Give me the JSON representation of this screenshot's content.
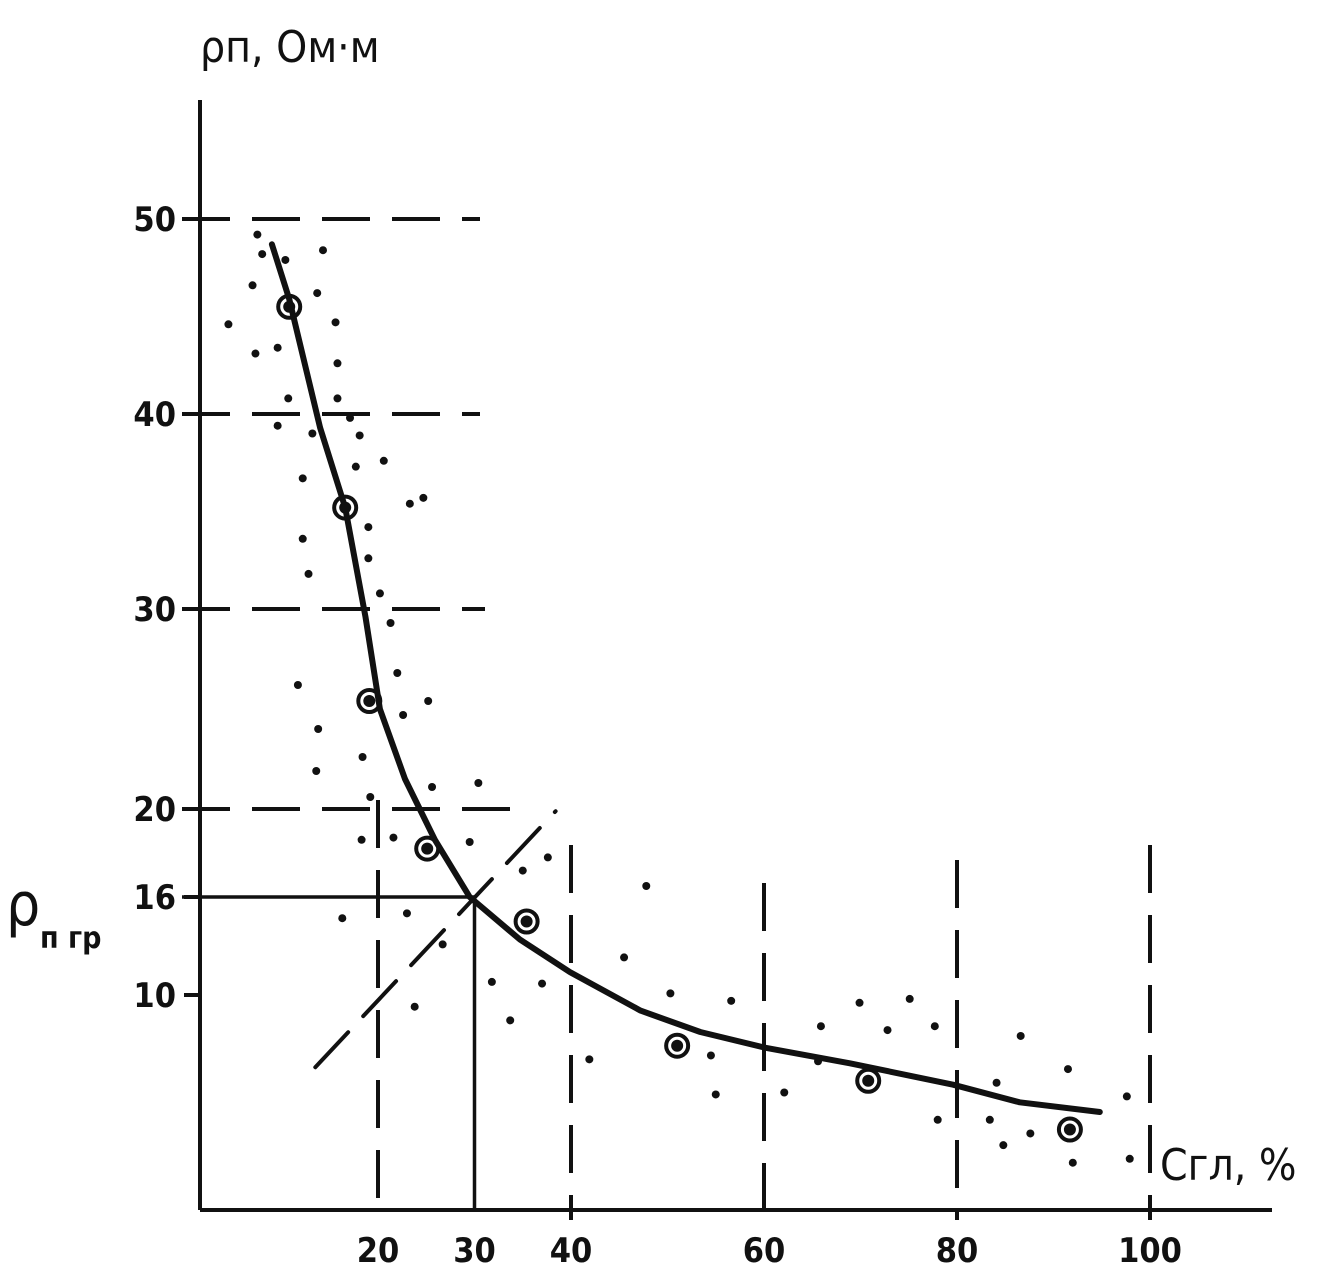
{
  "chart_data": {
    "type": "scatter",
    "title": "",
    "ylabel": "ρп, Ом·м",
    "xlabel": "Сгл, %",
    "annotation": {
      "label_main": "ρ",
      "label_sub": "п гр",
      "value": 16,
      "x_at_value": 30
    },
    "xlim": [
      0,
      110
    ],
    "ylim": [
      0,
      52
    ],
    "x_ticks": [
      "20",
      "30",
      "40",
      "60",
      "80",
      "100"
    ],
    "x_tick_values": [
      20,
      30,
      40,
      60,
      80,
      100
    ],
    "y_ticks": [
      "10",
      "16",
      "20",
      "30",
      "40",
      "50"
    ],
    "y_tick_values": [
      10,
      16,
      20,
      30,
      40,
      50
    ],
    "grid": "dashed guide lines at y=20,30,40,50 and x=20,40,60,80,100",
    "series": [
      {
        "name": "measurements",
        "marker": "dot",
        "points": [
          [
            4.5,
            44.6
          ],
          [
            7.0,
            46.6
          ],
          [
            7.3,
            43.1
          ],
          [
            7.5,
            49.2
          ],
          [
            8.0,
            48.2
          ],
          [
            9.6,
            43.4
          ],
          [
            10.4,
            47.9
          ],
          [
            10.7,
            40.8
          ],
          [
            9.6,
            39.4
          ],
          [
            13.7,
            46.2
          ],
          [
            13.2,
            39.0
          ],
          [
            12.2,
            36.7
          ],
          [
            12.2,
            33.6
          ],
          [
            12.8,
            31.8
          ],
          [
            11.7,
            26.2
          ],
          [
            13.8,
            24.0
          ],
          [
            13.6,
            21.9
          ],
          [
            14.3,
            48.4
          ],
          [
            15.6,
            44.7
          ],
          [
            15.8,
            42.6
          ],
          [
            15.8,
            40.8
          ],
          [
            17.1,
            39.8
          ],
          [
            18.1,
            38.9
          ],
          [
            17.7,
            37.3
          ],
          [
            19.0,
            34.2
          ],
          [
            19.0,
            32.6
          ],
          [
            20.2,
            30.8
          ],
          [
            20.6,
            37.6
          ],
          [
            21.3,
            29.3
          ],
          [
            22.0,
            26.8
          ],
          [
            22.6,
            24.7
          ],
          [
            25.2,
            25.4
          ],
          [
            18.4,
            22.6
          ],
          [
            19.2,
            20.6
          ],
          [
            18.3,
            18.6
          ],
          [
            21.6,
            18.7
          ],
          [
            23.3,
            35.4
          ],
          [
            24.7,
            35.7
          ],
          [
            25.6,
            21.1
          ],
          [
            30.4,
            21.3
          ],
          [
            29.5,
            18.5
          ],
          [
            37.6,
            17.8
          ],
          [
            35.0,
            17.2
          ],
          [
            16.3,
            14.7
          ],
          [
            23.0,
            15.0
          ],
          [
            26.7,
            13.1
          ],
          [
            23.8,
            9.4
          ],
          [
            31.8,
            10.8
          ],
          [
            33.7,
            8.7
          ],
          [
            37.0,
            10.7
          ],
          [
            41.9,
            6.7
          ],
          [
            45.5,
            12.3
          ],
          [
            47.8,
            16.5
          ],
          [
            50.3,
            10.1
          ],
          [
            54.5,
            6.9
          ],
          [
            55.0,
            4.9
          ],
          [
            56.6,
            9.7
          ],
          [
            62.1,
            5.0
          ],
          [
            65.9,
            8.4
          ],
          [
            65.6,
            6.6
          ],
          [
            69.9,
            9.6
          ],
          [
            72.8,
            8.2
          ],
          [
            75.1,
            9.8
          ],
          [
            77.7,
            8.4
          ],
          [
            78.0,
            3.6
          ],
          [
            83.4,
            3.6
          ],
          [
            84.1,
            5.5
          ],
          [
            84.8,
            2.3
          ],
          [
            87.6,
            2.9
          ],
          [
            86.6,
            7.9
          ],
          [
            91.5,
            6.2
          ],
          [
            92.0,
            1.4
          ],
          [
            97.6,
            4.8
          ],
          [
            97.9,
            1.6
          ]
        ]
      },
      {
        "name": "averages",
        "marker": "ringed-circle",
        "points": [
          [
            10.8,
            45.5
          ],
          [
            16.6,
            35.2
          ],
          [
            19.1,
            25.4
          ],
          [
            25.1,
            18.2
          ],
          [
            35.4,
            14.5
          ],
          [
            51.0,
            7.4
          ],
          [
            70.8,
            5.6
          ],
          [
            91.7,
            3.1
          ]
        ]
      },
      {
        "name": "fitted curve",
        "type": "line",
        "points": [
          [
            9.0,
            48.7
          ],
          [
            10.8,
            45.9
          ],
          [
            14.0,
            39.3
          ],
          [
            16.6,
            35.2
          ],
          [
            18.7,
            29.6
          ],
          [
            20.2,
            25.0
          ],
          [
            22.8,
            21.5
          ],
          [
            25.9,
            18.6
          ],
          [
            29.5,
            16.0
          ],
          [
            34.7,
            13.4
          ],
          [
            39.9,
            11.4
          ],
          [
            47.2,
            9.2
          ],
          [
            53.4,
            8.1
          ],
          [
            60.1,
            7.3
          ],
          [
            68.9,
            6.5
          ],
          [
            79.6,
            5.4
          ],
          [
            86.5,
            4.5
          ],
          [
            94.8,
            4.0
          ]
        ]
      },
      {
        "name": "tangent guide",
        "type": "dashed-line",
        "points": [
          [
            13.5,
            6.3
          ],
          [
            38.4,
            19.9
          ]
        ]
      }
    ]
  }
}
